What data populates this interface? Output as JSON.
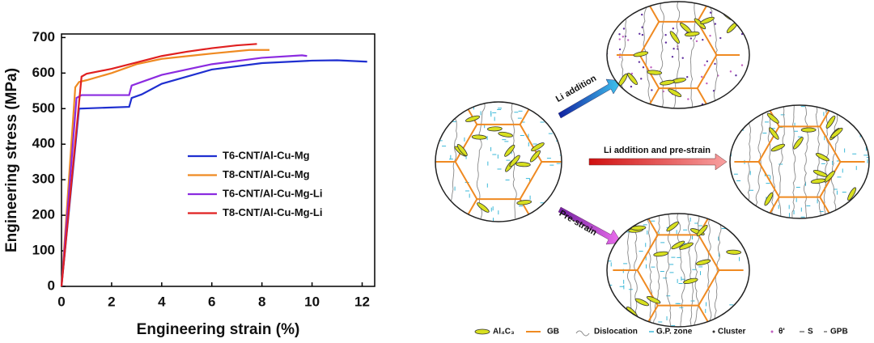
{
  "chart_data": {
    "type": "line",
    "x_label": "Engineering strain (%)",
    "y_label": "Engineering stress (MPa)",
    "xlim": [
      0,
      12.5
    ],
    "ylim": [
      0,
      710
    ],
    "xticks": [
      0,
      2,
      4,
      6,
      8,
      10,
      12
    ],
    "yticks": [
      0,
      100,
      200,
      300,
      400,
      500,
      600,
      700
    ],
    "legend": "center right",
    "series": [
      {
        "name": "T6-CNT/Al-Cu-Mg",
        "color": "#1f2fd0",
        "x": [
          0,
          0.7,
          2.7,
          2.8,
          3.2,
          4,
          6,
          8,
          10,
          11,
          12.2
        ],
        "values": [
          0,
          500,
          505,
          530,
          540,
          570,
          610,
          628,
          635,
          636,
          632
        ]
      },
      {
        "name": "T8-CNT/Al-Cu-Mg",
        "color": "#ef8a22",
        "x": [
          0,
          0.55,
          0.7,
          1,
          2,
          3,
          4,
          6,
          7.5,
          8.3
        ],
        "values": [
          0,
          560,
          575,
          580,
          600,
          625,
          640,
          655,
          665,
          665
        ]
      },
      {
        "name": "T6-CNT/Al-Cu-Mg-Li",
        "color": "#8b2be0",
        "x": [
          0,
          0.6,
          0.8,
          2.7,
          2.8,
          3.2,
          4,
          6,
          8,
          9.6,
          9.8
        ],
        "values": [
          0,
          530,
          538,
          538,
          565,
          575,
          595,
          625,
          643,
          650,
          648
        ]
      },
      {
        "name": "T8-CNT/Al-Cu-Mg-Li",
        "color": "#e02020",
        "x": [
          0,
          0.8,
          1,
          2,
          3,
          4,
          5,
          6,
          7,
          7.8
        ],
        "values": [
          0,
          590,
          598,
          612,
          630,
          648,
          660,
          670,
          678,
          682
        ]
      }
    ]
  },
  "diagram": {
    "arrows": [
      "Li addition",
      "Li addition and pre-strain",
      "Pre-strain"
    ],
    "legend": [
      "Al₄C₃",
      "GB",
      "Dislocation",
      "G.P. zone",
      "Cluster",
      "θ'",
      "S",
      "GPB"
    ]
  }
}
